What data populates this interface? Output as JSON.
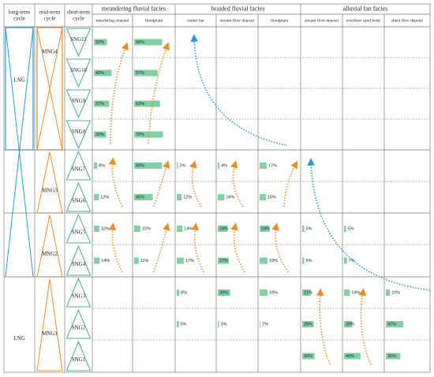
{
  "cycle_headers": [
    [
      "long-term",
      "cycle"
    ],
    [
      "mid-term",
      "cycle"
    ],
    [
      "short-term",
      "cycle"
    ]
  ],
  "long_term": [
    "LNG",
    "LNG"
  ],
  "mid_term": [
    "MNG4",
    "MNG3",
    "MNG2",
    "MNG1"
  ],
  "short_term": [
    "SNG11",
    "SNG10",
    "SNG9",
    "SNG8",
    "SNG7",
    "SNG6",
    "SNG5",
    "SNG4",
    "SNG3",
    "SNG2",
    "SNG1"
  ],
  "facies_groups": [
    {
      "name": "meandering fluvial facies",
      "columns": [
        {
          "name": "mendering channel",
          "values": [
            32,
            43,
            37,
            30,
            8,
            12,
            13,
            14,
            null,
            null,
            null
          ],
          "value_labels": [
            "32%",
            "43%",
            "37%",
            "30%",
            "8%",
            "12%",
            "13%",
            "14%",
            null,
            null,
            null
          ]
        },
        {
          "name": "floodplain",
          "values": [
            68,
            57,
            63,
            70,
            68,
            45,
            15,
            11,
            null,
            null,
            null
          ],
          "value_labels": [
            "68%",
            "57%",
            "63%",
            "70%",
            "68%",
            "45%",
            "15%",
            "11%",
            null,
            null,
            null
          ]
        }
      ]
    },
    {
      "name": "braided fluvial facies",
      "columns": [
        {
          "name": "center bar",
          "values": [
            null,
            null,
            null,
            null,
            3,
            12,
            14,
            17,
            6,
            5,
            null
          ],
          "value_labels": [
            null,
            null,
            null,
            null,
            "3%",
            "12%",
            "14%",
            "17%",
            "6%",
            "5%",
            null
          ]
        },
        {
          "name": "stream flow deposit",
          "values": [
            null,
            null,
            null,
            null,
            4,
            16,
            24,
            27,
            30,
            3,
            null
          ],
          "value_labels": [
            null,
            null,
            null,
            null,
            "4%",
            "16%",
            "24%",
            "27%",
            "30%",
            "3%",
            null
          ]
        },
        {
          "name": "floodplain",
          "values": [
            null,
            null,
            null,
            null,
            17,
            15,
            24,
            19,
            19,
            2,
            null
          ],
          "value_labels": [
            null,
            null,
            null,
            null,
            "17%",
            "15%",
            "24%",
            "19%",
            "19%",
            "2%",
            null
          ]
        }
      ]
    },
    {
      "name": "alluvial fan facies",
      "columns": [
        {
          "name": "stream flow deposit",
          "values": [
            null,
            null,
            null,
            null,
            null,
            null,
            5,
            5,
            21,
            28,
            30
          ],
          "value_labels": [
            null,
            null,
            null,
            null,
            null,
            null,
            "5%",
            "5%",
            "21%",
            "28%",
            "30%"
          ]
        },
        {
          "name": "overflow sand body",
          "values": [
            null,
            null,
            null,
            null,
            null,
            null,
            5,
            7,
            14,
            20,
            40
          ],
          "value_labels": [
            null,
            null,
            null,
            null,
            null,
            null,
            "5%",
            "7%",
            "14%",
            "20%",
            "40%"
          ]
        },
        {
          "name": "sheet flow deposit",
          "values": [
            null,
            null,
            null,
            null,
            null,
            null,
            null,
            null,
            10,
            42,
            35
          ],
          "value_labels": [
            null,
            null,
            null,
            null,
            null,
            null,
            null,
            null,
            "10%",
            "42%",
            "35%"
          ]
        }
      ]
    }
  ]
}
